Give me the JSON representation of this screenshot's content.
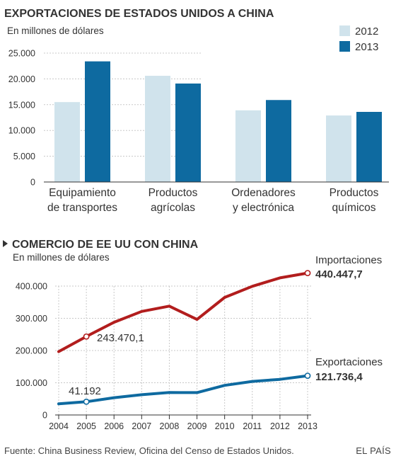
{
  "colors": {
    "light_bar": "#d0e3ec",
    "dark_bar": "#0e6aa0",
    "imports_line": "#b21d1d",
    "exports_line": "#0e6aa0",
    "text": "#333333"
  },
  "footer": {
    "source": "Fuente: China Business Review, Oficina del Censo de Estados Unidos.",
    "brand": "EL PAÍS"
  },
  "bullet_icon": "triangle-right-icon",
  "chart_data": [
    {
      "type": "bar",
      "title": "EXPORTACIONES DE ESTADOS UNIDOS A CHINA",
      "subtitle": "En millones de dólares",
      "categories": [
        [
          "Equipamiento",
          "de transportes"
        ],
        [
          "Productos",
          "agrícolas"
        ],
        [
          "Ordenadores",
          "y electrónica"
        ],
        [
          "Productos",
          "químicos"
        ]
      ],
      "series": [
        {
          "name": "2012",
          "color": "#d0e3ec",
          "values": [
            15500,
            20600,
            13900,
            12900
          ]
        },
        {
          "name": "2013",
          "color": "#0e6aa0",
          "values": [
            23400,
            19100,
            15900,
            13600
          ]
        }
      ],
      "ylim": [
        0,
        25000
      ],
      "y_ticks": [
        0,
        5000,
        10000,
        15000,
        20000,
        25000
      ],
      "y_tick_labels": [
        "0",
        "5.000",
        "10.000",
        "15.000",
        "20.000",
        "25.000"
      ],
      "grid": true,
      "legend_position": "top-right"
    },
    {
      "type": "line",
      "title": "COMERCIO DE EE UU CON CHINA",
      "subtitle": "En millones de dólares",
      "x": [
        2004,
        2005,
        2006,
        2007,
        2008,
        2009,
        2010,
        2011,
        2012,
        2013
      ],
      "x_tick_labels": [
        "2004",
        "2005",
        "2006",
        "2007",
        "2008",
        "2009",
        "2010",
        "2011",
        "2012",
        "2013"
      ],
      "series": [
        {
          "name": "Importaciones",
          "color": "#b21d1d",
          "values": [
            196700,
            243470.1,
            287800,
            321400,
            337800,
            296400,
            364900,
            399300,
            425600,
            440447.7
          ],
          "end_label": "440.447,7"
        },
        {
          "name": "Exportaciones",
          "color": "#0e6aa0",
          "values": [
            34400,
            41192,
            53700,
            62900,
            69700,
            69500,
            91900,
            104100,
            110500,
            121736.4
          ],
          "end_label": "121.736,4"
        }
      ],
      "annotations": [
        {
          "x": 2005,
          "series": "Importaciones",
          "text": "243.470,1"
        },
        {
          "x": 2005,
          "series": "Exportaciones",
          "text": "41.192"
        }
      ],
      "ylim": [
        0,
        440000
      ],
      "y_ticks": [
        0,
        100000,
        200000,
        300000,
        400000
      ],
      "y_tick_labels": [
        "0",
        "100.000",
        "200.000",
        "300.000",
        "400.000"
      ],
      "grid": true,
      "legend_position": "right"
    }
  ]
}
